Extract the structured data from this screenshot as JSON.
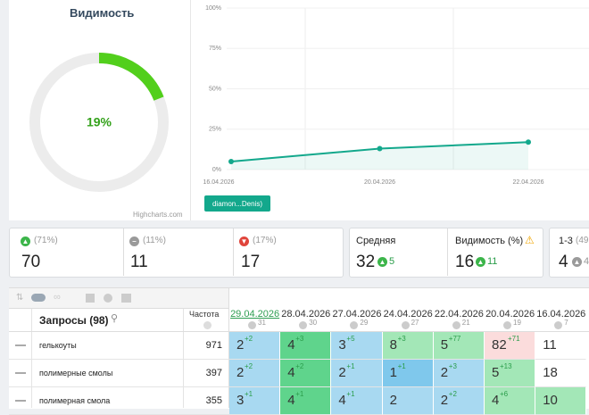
{
  "visibility": {
    "title": "Видимость",
    "value": 19,
    "value_label": "19%",
    "credit": "Highcharts.com",
    "color": "#52cf1c",
    "track": "#ececec"
  },
  "chart_data": {
    "type": "line",
    "categories": [
      "16.04.2026",
      "20.04.2026",
      "22.04.2026"
    ],
    "series": [
      {
        "name": "diamon...Denis)",
        "color": "#13a88c",
        "values": [
          5,
          13,
          17
        ]
      }
    ],
    "ylim": [
      0,
      100
    ],
    "yticks": [
      {
        "value": 0,
        "label": "0%"
      },
      {
        "value": 25,
        "label": "25%"
      },
      {
        "value": 50,
        "label": "50%"
      },
      {
        "value": 75,
        "label": "75%"
      },
      {
        "value": 100,
        "label": "100%"
      }
    ],
    "grid": true
  },
  "stats": {
    "distribution": [
      {
        "share": "(71%)",
        "count": "70"
      },
      {
        "share": "(11%)",
        "count": "11"
      },
      {
        "share": "(17%)",
        "count": "17"
      }
    ],
    "average": {
      "label": "Средняя",
      "value": "32",
      "change": "5"
    },
    "visibility": {
      "label": "Видимость (%)",
      "value": "16",
      "change": "11"
    },
    "top3": {
      "label": "1-3",
      "share": "(49",
      "value": "4",
      "change": "4"
    }
  },
  "table": {
    "query_header": "Запросы (98)",
    "freq_header": "Частота",
    "dates": [
      {
        "date": "29.04.2026",
        "count": "31"
      },
      {
        "date": "28.04.2026",
        "count": "30"
      },
      {
        "date": "27.04.2026",
        "count": "29"
      },
      {
        "date": "24.04.2026",
        "count": "27"
      },
      {
        "date": "22.04.2026",
        "count": "21"
      },
      {
        "date": "20.04.2026",
        "count": "19"
      },
      {
        "date": "16.04.2026",
        "count": "7"
      }
    ],
    "rows": [
      {
        "query": "гелькоуты",
        "freq": "971",
        "cells": [
          {
            "pos": "2",
            "delta": "+2",
            "color": "#a8d9f1"
          },
          {
            "pos": "4",
            "delta": "+3",
            "color": "#5fd48c"
          },
          {
            "pos": "3",
            "delta": "+5",
            "color": "#a8d9f1"
          },
          {
            "pos": "8",
            "delta": "+3",
            "color": "#a3e7b7"
          },
          {
            "pos": "5",
            "delta": "+77",
            "color": "#a3e7b7"
          },
          {
            "pos": "82",
            "delta": "+71",
            "color": "#fbdcdc"
          },
          {
            "pos": "11",
            "color": "#ffffff"
          }
        ]
      },
      {
        "query": "полимерные смолы",
        "freq": "397",
        "cells": [
          {
            "pos": "2",
            "delta": "+2",
            "color": "#a8d9f1"
          },
          {
            "pos": "4",
            "delta": "+2",
            "color": "#5fd48c"
          },
          {
            "pos": "2",
            "delta": "+1",
            "color": "#a8d9f1"
          },
          {
            "pos": "1",
            "delta": "+1",
            "color": "#7fc8ec"
          },
          {
            "pos": "2",
            "delta": "+3",
            "color": "#a8d9f1"
          },
          {
            "pos": "5",
            "delta": "+13",
            "color": "#a3e7b7"
          },
          {
            "pos": "18",
            "color": "#ffffff"
          }
        ]
      },
      {
        "query": "полимерная смола",
        "freq": "355",
        "cells": [
          {
            "pos": "3",
            "delta": "+1",
            "color": "#a8d9f1"
          },
          {
            "pos": "4",
            "delta": "+1",
            "color": "#5fd48c"
          },
          {
            "pos": "4",
            "delta": "+1",
            "color": "#a8d9f1"
          },
          {
            "pos": "2",
            "color": "#a8d9f1"
          },
          {
            "pos": "2",
            "delta": "+2",
            "color": "#a8d9f1"
          },
          {
            "pos": "4",
            "delta": "+6",
            "color": "#a3e7b7"
          },
          {
            "pos": "10",
            "color": "#a3e7b7"
          }
        ]
      }
    ]
  }
}
